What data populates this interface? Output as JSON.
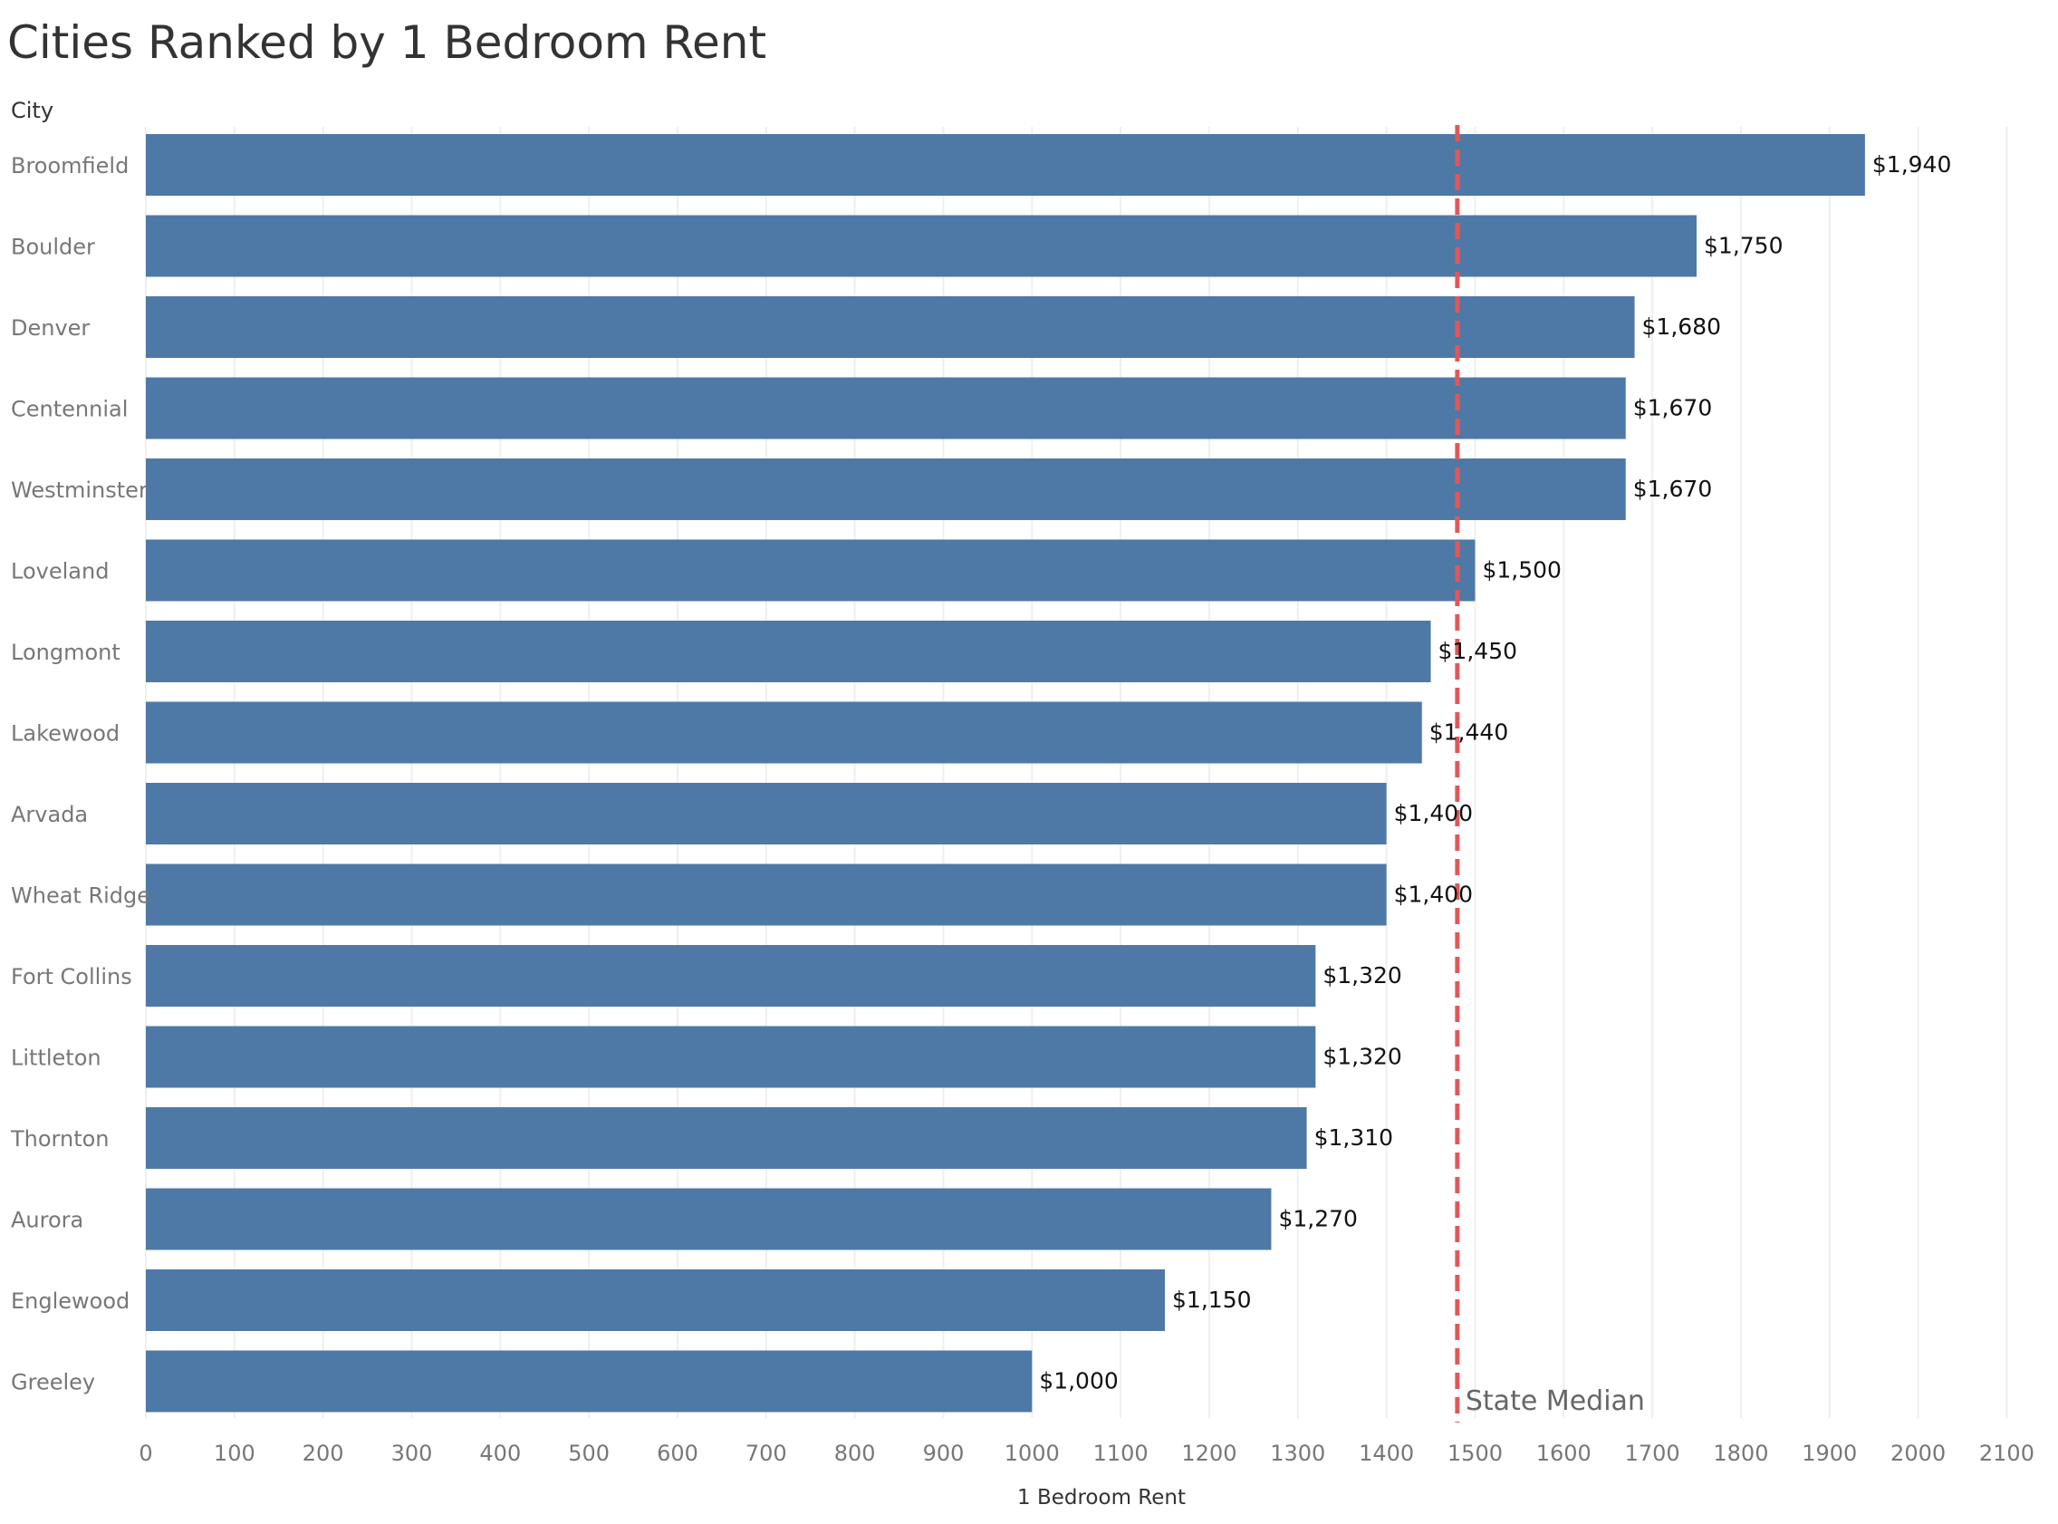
{
  "chart_data": {
    "type": "bar",
    "orientation": "horizontal",
    "title": "Cities Ranked by 1 Bedroom Rent",
    "ylabel": "City",
    "xlabel": "1 Bedroom Rent",
    "xlim": [
      0,
      2100
    ],
    "xticks": [
      0,
      100,
      200,
      300,
      400,
      500,
      600,
      700,
      800,
      900,
      1000,
      1100,
      1200,
      1300,
      1400,
      1500,
      1600,
      1700,
      1800,
      1900,
      2000,
      2100
    ],
    "grid": true,
    "categories": [
      "Broomfield",
      "Boulder",
      "Denver",
      "Centennial",
      "Westminster",
      "Loveland",
      "Longmont",
      "Lakewood",
      "Arvada",
      "Wheat Ridge",
      "Fort Collins",
      "Littleton",
      "Thornton",
      "Aurora",
      "Englewood",
      "Greeley"
    ],
    "values": [
      1940,
      1750,
      1680,
      1670,
      1670,
      1500,
      1450,
      1440,
      1400,
      1400,
      1320,
      1320,
      1310,
      1270,
      1150,
      1000
    ],
    "data_labels": [
      "$1,940",
      "$1,750",
      "$1,680",
      "$1,670",
      "$1,670",
      "$1,500",
      "$1,450",
      "$1,440",
      "$1,400",
      "$1,400",
      "$1,320",
      "$1,320",
      "$1,310",
      "$1,270",
      "$1,150",
      "$1,000"
    ],
    "reference_line": {
      "label": "State Median",
      "value": 1480,
      "style": "dashed"
    },
    "colors": {
      "bar": "#4e79a7",
      "reference": "#e15759",
      "grid": "#efefef",
      "axis_text": "#777777",
      "label_text": "#111111"
    }
  }
}
